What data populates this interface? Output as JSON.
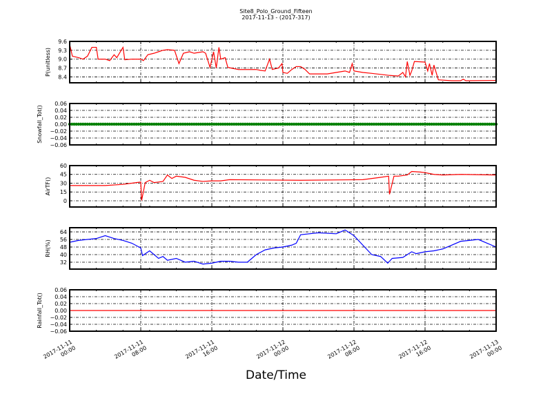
{
  "chart_data": {
    "type": "line",
    "title": "Site8_Polo_Ground_Fifteen",
    "subtitle": "2017-11-13 - (2017-317)",
    "xlabel": "Date/Time",
    "x_unit": "hours since 2017-11-11 00:00",
    "xlim": [
      0,
      48
    ],
    "x_ticks": [
      0,
      8,
      16,
      24,
      32,
      40,
      48
    ],
    "x_tick_labels": [
      [
        "2017-11-11",
        "00:00"
      ],
      [
        "2017-11-11",
        "08:00"
      ],
      [
        "2017-11-11",
        "16:00"
      ],
      [
        "2017-11-12",
        "00:00"
      ],
      [
        "2017-11-12",
        "08:00"
      ],
      [
        "2017-11-12",
        "16:00"
      ],
      [
        "2017-11-13",
        "00:00"
      ]
    ],
    "grid": true,
    "panels": [
      {
        "ylabel": "P(unitless)",
        "color": "#ff0000",
        "style": "line",
        "ylim": [
          8.2,
          9.6
        ],
        "yticks": [
          8.4,
          8.7,
          9.0,
          9.3,
          9.6
        ],
        "yticklabels": [
          "8.4",
          "8.7",
          "9.0",
          "9.3",
          "9.6"
        ],
        "x": [
          0,
          0.3,
          1,
          1.5,
          2,
          2.5,
          3,
          3.2,
          4,
          4.5,
          5,
          5.3,
          6,
          6.2,
          7,
          8,
          8.3,
          8.8,
          9.5,
          10,
          10.5,
          11,
          11.8,
          12.3,
          12.8,
          13.5,
          14,
          15,
          15.3,
          15.8,
          16.2,
          16.5,
          16.8,
          17,
          17.5,
          17.8,
          19,
          21,
          21.5,
          22,
          22.5,
          22.8,
          23.5,
          23.9,
          24,
          24.5,
          25,
          25.5,
          26,
          26.5,
          27,
          29,
          30,
          31,
          31.5,
          31.8,
          32,
          33,
          34,
          36,
          37,
          37.5,
          37.8,
          38,
          38.3,
          38.5,
          38.8,
          40,
          40.3,
          40.5,
          40.8,
          41,
          41.5,
          43,
          44,
          44.3,
          44.6,
          48
        ],
        "y": [
          9.5,
          9.1,
          9.05,
          9.0,
          9.1,
          9.4,
          9.4,
          9.0,
          9.0,
          8.95,
          9.15,
          9.05,
          9.4,
          8.98,
          9.0,
          9.0,
          8.95,
          9.15,
          9.2,
          9.25,
          9.3,
          9.32,
          9.3,
          8.85,
          9.2,
          9.25,
          9.2,
          9.25,
          9.2,
          8.72,
          9.25,
          8.7,
          9.4,
          9.0,
          9.05,
          8.72,
          8.65,
          8.65,
          8.62,
          8.6,
          9.0,
          8.65,
          8.7,
          8.85,
          8.55,
          8.52,
          8.65,
          8.75,
          8.75,
          8.65,
          8.5,
          8.5,
          8.55,
          8.6,
          8.55,
          8.85,
          8.6,
          8.55,
          8.52,
          8.45,
          8.43,
          8.55,
          8.4,
          8.92,
          8.45,
          8.6,
          8.92,
          8.9,
          8.6,
          8.85,
          8.45,
          8.8,
          8.3,
          8.27,
          8.27,
          8.32,
          8.27,
          8.28
        ]
      },
      {
        "ylabel": "Snowfall_Tot()",
        "color": "#007f00",
        "style": "dots",
        "ylim": [
          -0.06,
          0.06
        ],
        "yticks": [
          -0.06,
          -0.04,
          -0.02,
          0,
          0.02,
          0.04,
          0.06
        ],
        "yticklabels": [
          "−0.06",
          "−0.04",
          "−0.02",
          "0.00",
          "0.02",
          "0.04",
          "0.06"
        ],
        "x": [
          0,
          48
        ],
        "y": [
          0,
          0
        ]
      },
      {
        "ylabel": "AirTF()",
        "color": "#ff0000",
        "style": "line",
        "ylim": [
          -10.6,
          60
        ],
        "yticks": [
          0,
          15,
          30,
          45,
          60
        ],
        "yticklabels": [
          "0",
          "15",
          "30",
          "45",
          "60"
        ],
        "x": [
          0,
          4,
          6,
          7.5,
          8,
          8.1,
          8.5,
          9,
          9.5,
          10,
          10.5,
          11,
          11.5,
          12,
          13,
          14,
          15,
          16,
          17,
          18,
          26,
          33,
          35,
          35.9,
          36,
          36.5,
          37,
          38,
          38.5,
          39.5,
          40,
          41,
          42,
          44,
          48
        ],
        "y": [
          26,
          26,
          28,
          31,
          32,
          0.5,
          31,
          35,
          31,
          32,
          33,
          44,
          38,
          42,
          40,
          35,
          33,
          34,
          34,
          36,
          35,
          36,
          40,
          42,
          11,
          42,
          42,
          44,
          50,
          49,
          48,
          45,
          44,
          45,
          44
        ]
      },
      {
        "ylabel": "RH(%)",
        "color": "#0000ff",
        "style": "line",
        "ylim": [
          24.7,
          68.4
        ],
        "yticks": [
          32,
          40,
          48,
          56,
          64
        ],
        "yticklabels": [
          "32",
          "40",
          "48",
          "56",
          "64"
        ],
        "x": [
          0,
          1,
          3,
          4,
          5,
          6,
          7,
          8,
          8.2,
          9,
          10,
          10.5,
          11,
          12,
          13,
          14,
          15,
          16,
          17,
          18,
          19,
          20,
          21,
          22,
          23,
          24,
          25,
          25.5,
          26,
          28,
          30,
          31,
          32,
          34,
          35,
          35.8,
          36.3,
          37.5,
          38,
          38.5,
          39,
          40,
          41,
          42,
          43,
          44,
          45,
          46,
          47,
          48
        ],
        "y": [
          53,
          55,
          57,
          60,
          57,
          55,
          52,
          47,
          39,
          44,
          36,
          38,
          34,
          36,
          32,
          33,
          30,
          31,
          33,
          33,
          32,
          32,
          40,
          45,
          47,
          48,
          50,
          52,
          61,
          63,
          62,
          66,
          60,
          40,
          38,
          31,
          36,
          37,
          40,
          43,
          41,
          43,
          44,
          46,
          50,
          54,
          55,
          56,
          52,
          48
        ]
      },
      {
        "ylabel": "Rainfall_Tot()",
        "color": "#ff0000",
        "style": "line",
        "ylim": [
          -0.06,
          0.06
        ],
        "yticks": [
          -0.06,
          -0.04,
          -0.02,
          0,
          0.02,
          0.04,
          0.06
        ],
        "yticklabels": [
          "−0.06",
          "−0.04",
          "−0.02",
          "0.00",
          "0.02",
          "0.04",
          "0.06"
        ],
        "x": [
          0,
          48
        ],
        "y": [
          0,
          0
        ]
      }
    ]
  }
}
